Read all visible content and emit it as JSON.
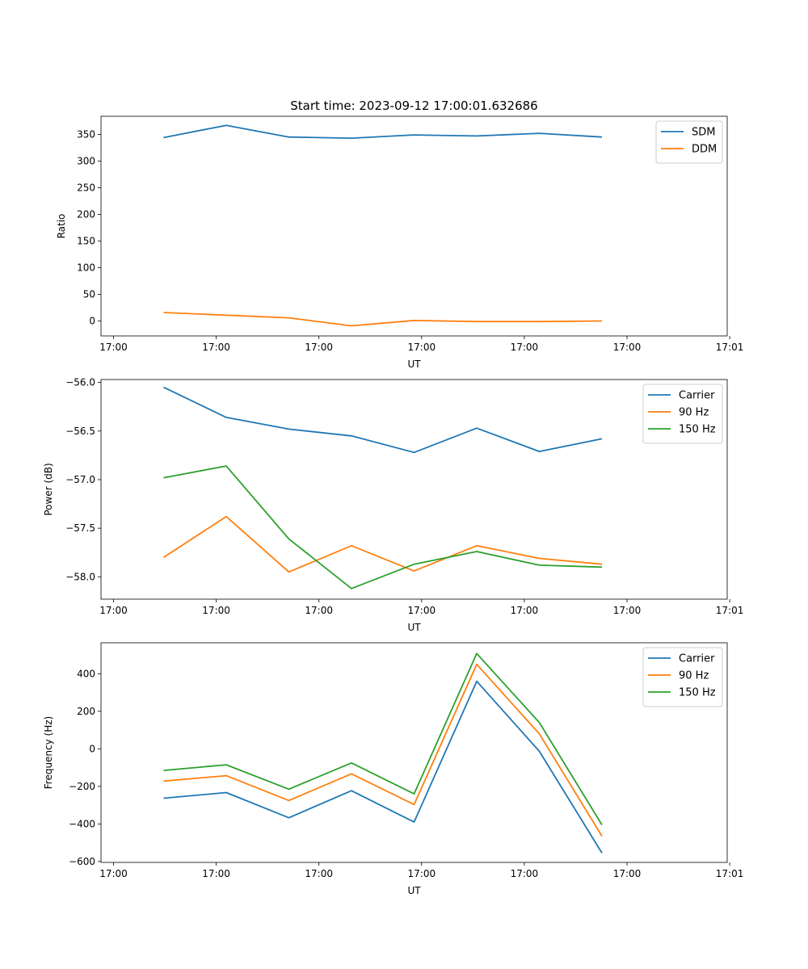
{
  "figure_title": "Start time: 2023-09-12 17:00:01.632686",
  "colors": {
    "blue": "#1f77b4",
    "orange": "#ff7f0e",
    "green": "#2ca02c"
  },
  "chart_data": [
    {
      "type": "line",
      "title": "Start time: 2023-09-12 17:00:01.632686",
      "xlabel": "UT",
      "ylabel": "Ratio",
      "x": [
        1,
        2,
        3,
        4,
        5,
        6,
        7,
        8
      ],
      "xlim": [
        0,
        10
      ],
      "x_ticks": [
        0.2,
        1.84,
        3.48,
        5.12,
        6.76,
        8.4,
        10.04
      ],
      "x_tick_labels": [
        "17:00",
        "17:00",
        "17:00",
        "17:00",
        "17:00",
        "17:00",
        "17:01"
      ],
      "ylim": [
        -28,
        384
      ],
      "y_ticks": [
        0,
        50,
        100,
        150,
        200,
        250,
        300,
        350
      ],
      "y_tick_labels": [
        "0",
        "50",
        "100",
        "150",
        "200",
        "250",
        "300",
        "350"
      ],
      "legend": "top-right",
      "series": [
        {
          "name": "SDM",
          "color": "#1f77b4",
          "values": [
            344,
            367,
            345,
            343,
            349,
            347,
            352,
            345
          ]
        },
        {
          "name": "DDM",
          "color": "#ff7f0e",
          "values": [
            16,
            11,
            6,
            -9,
            1,
            -1,
            -1,
            0
          ]
        }
      ]
    },
    {
      "type": "line",
      "title": "",
      "xlabel": "UT",
      "ylabel": "Power (dB)",
      "x": [
        1,
        2,
        3,
        4,
        5,
        6,
        7,
        8
      ],
      "xlim": [
        0,
        10
      ],
      "x_ticks": [
        0.2,
        1.84,
        3.48,
        5.12,
        6.76,
        8.4,
        10.04
      ],
      "x_tick_labels": [
        "17:00",
        "17:00",
        "17:00",
        "17:00",
        "17:00",
        "17:00",
        "17:01"
      ],
      "ylim": [
        -58.23,
        -55.97
      ],
      "y_ticks": [
        -56.0,
        -56.5,
        -57.0,
        -57.5,
        -58.0
      ],
      "y_tick_labels": [
        "−56.0",
        "−56.5",
        "−57.0",
        "−57.5",
        "−58.0"
      ],
      "legend": "top-right",
      "series": [
        {
          "name": "Carrier",
          "color": "#1f77b4",
          "values": [
            -56.05,
            -56.36,
            -56.48,
            -56.55,
            -56.72,
            -56.47,
            -56.71,
            -56.58
          ]
        },
        {
          "name": "90 Hz",
          "color": "#ff7f0e",
          "values": [
            -57.8,
            -57.38,
            -57.95,
            -57.68,
            -57.94,
            -57.68,
            -57.81,
            -57.87
          ]
        },
        {
          "name": "150 Hz",
          "color": "#2ca02c",
          "values": [
            -56.98,
            -56.86,
            -57.61,
            -58.12,
            -57.87,
            -57.74,
            -57.88,
            -57.9
          ]
        }
      ]
    },
    {
      "type": "line",
      "title": "",
      "xlabel": "UT",
      "ylabel": "Frequency (Hz)",
      "x": [
        1,
        2,
        3,
        4,
        5,
        6,
        7,
        8
      ],
      "xlim": [
        0,
        10
      ],
      "x_ticks": [
        0.2,
        1.84,
        3.48,
        5.12,
        6.76,
        8.4,
        10.04
      ],
      "x_tick_labels": [
        "17:00",
        "17:00",
        "17:00",
        "17:00",
        "17:00",
        "17:00",
        "17:01"
      ],
      "ylim": [
        -605,
        565
      ],
      "y_ticks": [
        400,
        200,
        0,
        -200,
        -400,
        -600
      ],
      "y_tick_labels": [
        "400",
        "200",
        "0",
        "−200",
        "−400",
        "−600"
      ],
      "legend": "top-right",
      "series": [
        {
          "name": "Carrier",
          "color": "#1f77b4",
          "values": [
            -263,
            -233,
            -367,
            -223,
            -390,
            360,
            -13,
            -555
          ]
        },
        {
          "name": "90 Hz",
          "color": "#ff7f0e",
          "values": [
            -172,
            -143,
            -275,
            -133,
            -297,
            450,
            80,
            -465
          ]
        },
        {
          "name": "150 Hz",
          "color": "#2ca02c",
          "values": [
            -115,
            -85,
            -215,
            -75,
            -240,
            508,
            140,
            -405
          ]
        }
      ]
    }
  ]
}
